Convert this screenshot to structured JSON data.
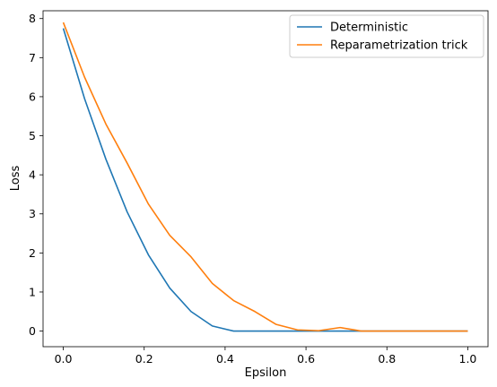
{
  "chart_data": {
    "type": "line",
    "title": "",
    "xlabel": "Epsilon",
    "ylabel": "Loss",
    "xlim": [
      -0.05,
      1.05
    ],
    "ylim": [
      -0.4,
      8.2
    ],
    "xticks": [
      "0.0",
      "0.2",
      "0.4",
      "0.6",
      "0.8",
      "1.0"
    ],
    "yticks": [
      "0",
      "1",
      "2",
      "3",
      "4",
      "5",
      "6",
      "7",
      "8"
    ],
    "grid": false,
    "legend": "top-right",
    "x": [
      0.0,
      0.0526,
      0.1053,
      0.1579,
      0.2105,
      0.2632,
      0.3158,
      0.3684,
      0.4211,
      0.4737,
      0.5263,
      0.5789,
      0.6316,
      0.6842,
      0.7368,
      0.7895,
      0.8421,
      0.8947,
      0.9474,
      1.0
    ],
    "series": [
      {
        "name": "Deterministic",
        "color": "#1f77b4",
        "values": [
          7.75,
          5.95,
          4.4,
          3.05,
          1.95,
          1.1,
          0.5,
          0.13,
          0.0,
          0.0,
          0.0,
          0.0,
          0.0,
          0.0,
          0.0,
          0.0,
          0.0,
          0.0,
          0.0,
          0.0
        ]
      },
      {
        "name": "Reparametrization trick",
        "color": "#ff7f0e",
        "values": [
          7.9,
          6.5,
          5.3,
          4.3,
          3.25,
          2.45,
          1.9,
          1.22,
          0.78,
          0.5,
          0.17,
          0.03,
          0.01,
          0.09,
          0.0,
          0.0,
          0.0,
          0.0,
          0.0,
          0.0
        ]
      }
    ]
  }
}
